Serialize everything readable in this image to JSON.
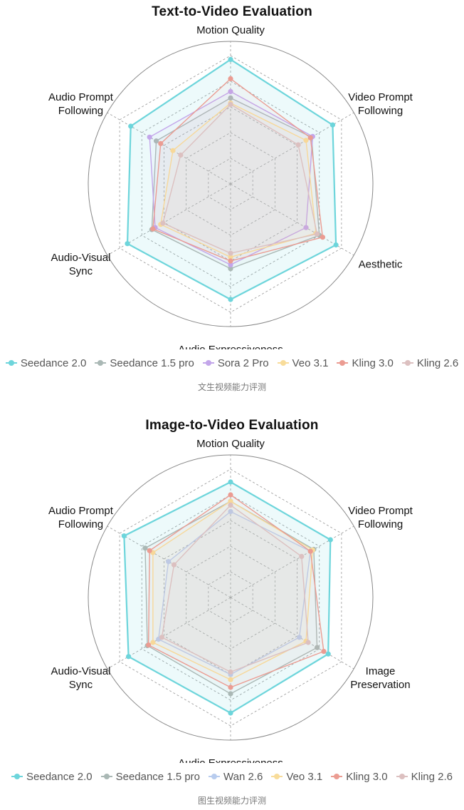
{
  "chart_data": [
    {
      "type": "radar",
      "title": "Text-to-Video Evaluation",
      "caption": "文生视频能力评测",
      "axes": [
        "Motion Quality",
        "Video Prompt Following",
        "Aesthetic",
        "Audio Expressiveness",
        "Audio-Visual Sync",
        "Audio Prompt Following"
      ],
      "range": [
        0,
        1
      ],
      "grid_levels": 5,
      "legend_position": "bottom",
      "series": [
        {
          "name": "Seedance 2.0",
          "color": "#6dd5db",
          "values": [
            0.97,
            0.92,
            0.95,
            0.9,
            0.93,
            0.9
          ]
        },
        {
          "name": "Seedance 1.5 pro",
          "color": "#aab8b5",
          "values": [
            0.67,
            0.73,
            0.8,
            0.66,
            0.71,
            0.67
          ]
        },
        {
          "name": "Sora 2 Pro",
          "color": "#c3a6ea",
          "values": [
            0.72,
            0.74,
            0.68,
            0.63,
            0.68,
            0.73
          ]
        },
        {
          "name": "Veo 3.1",
          "color": "#f8dc9a",
          "values": [
            0.63,
            0.68,
            0.77,
            0.57,
            0.63,
            0.52
          ]
        },
        {
          "name": "Kling 3.0",
          "color": "#eb9c92",
          "values": [
            0.82,
            0.72,
            0.83,
            0.6,
            0.7,
            0.63
          ]
        },
        {
          "name": "Kling 2.6",
          "color": "#dcc0c0",
          "values": [
            0.62,
            0.61,
            0.78,
            0.54,
            0.61,
            0.45
          ]
        }
      ]
    },
    {
      "type": "radar",
      "title": "Image-to-Video Evaluation",
      "caption": "图生视频能力评测",
      "axes": [
        "Motion Quality",
        "Video Prompt Following",
        "Image Preservation",
        "Audio Expressiveness",
        "Audio-Visual Sync",
        "Audio Prompt Following"
      ],
      "range": [
        0,
        1
      ],
      "grid_levels": 5,
      "legend_position": "bottom",
      "series": [
        {
          "name": "Seedance 2.0",
          "color": "#6dd5db",
          "values": [
            0.9,
            0.9,
            0.88,
            0.9,
            0.92,
            0.96
          ]
        },
        {
          "name": "Seedance 1.5 pro",
          "color": "#aab8b5",
          "values": [
            0.75,
            0.75,
            0.78,
            0.75,
            0.75,
            0.77
          ]
        },
        {
          "name": "Wan 2.6",
          "color": "#b8ccee",
          "values": [
            0.67,
            0.72,
            0.62,
            0.6,
            0.65,
            0.56
          ]
        },
        {
          "name": "Veo 3.1",
          "color": "#f8dc9a",
          "values": [
            0.75,
            0.74,
            0.68,
            0.64,
            0.7,
            0.7
          ]
        },
        {
          "name": "Kling 3.0",
          "color": "#eb9c92",
          "values": [
            0.8,
            0.72,
            0.84,
            0.7,
            0.74,
            0.73
          ]
        },
        {
          "name": "Kling 2.6",
          "color": "#dcc0c0",
          "values": [
            0.72,
            0.64,
            0.7,
            0.58,
            0.62,
            0.51
          ]
        }
      ]
    }
  ]
}
